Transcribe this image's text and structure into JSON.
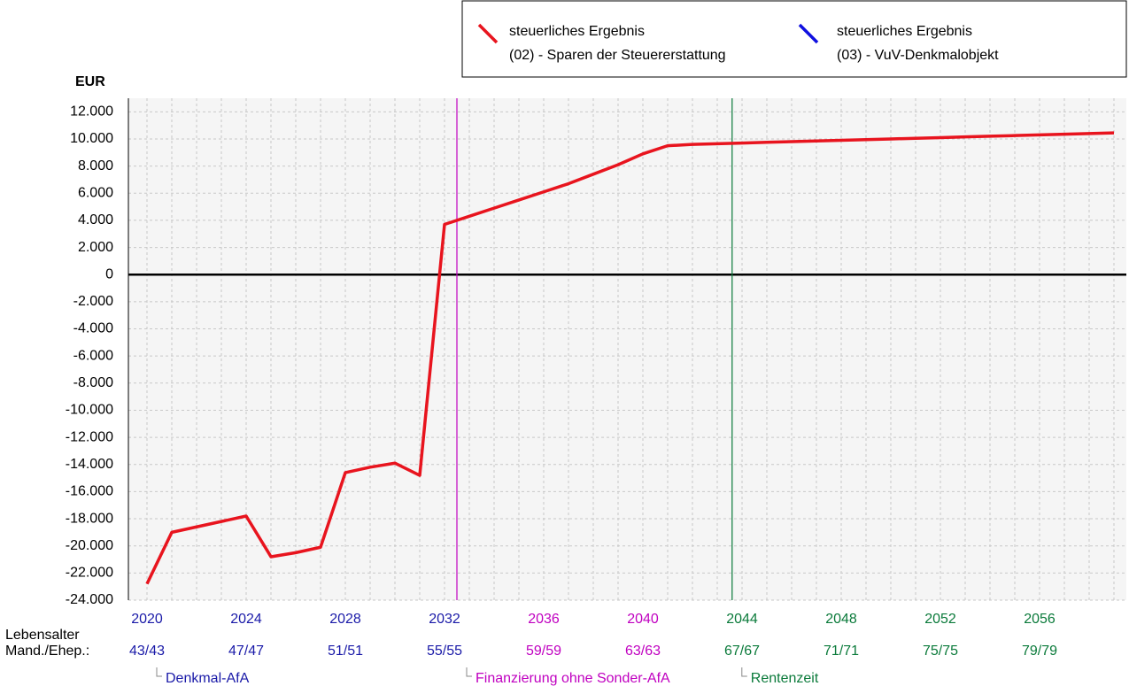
{
  "chart_data": {
    "type": "line",
    "y_label": "EUR",
    "series": [
      {
        "name": "steuerliches Ergebnis",
        "subtitle": "(02) - Sparen der Steuererstattung",
        "color": "#e8141e",
        "values": [
          -22800,
          -19000,
          -18600,
          -18200,
          -17800,
          -20800,
          -20500,
          -20100,
          -14600,
          -14200,
          -13900,
          -14800,
          3700,
          4300,
          4900,
          5500,
          6100,
          6700,
          7400,
          8100,
          8900,
          9500,
          9600,
          9650,
          9700,
          9750,
          9800,
          9850,
          9900,
          9950,
          10000,
          10050,
          10100,
          10150,
          10200,
          10250,
          10300,
          10350,
          10400,
          10450
        ]
      },
      {
        "name": "steuerliches Ergebnis",
        "subtitle": "(03) - VuV-Denkmalobjekt",
        "color": "#1010e0"
      }
    ],
    "x": [
      2020,
      2021,
      2022,
      2023,
      2024,
      2025,
      2026,
      2027,
      2028,
      2029,
      2030,
      2031,
      2032,
      2033,
      2034,
      2035,
      2036,
      2037,
      2038,
      2039,
      2040,
      2041,
      2042,
      2043,
      2044,
      2045,
      2046,
      2047,
      2048,
      2049,
      2050,
      2051,
      2052,
      2053,
      2054,
      2055,
      2056,
      2057,
      2058,
      2059
    ],
    "xlim": [
      2019.25,
      2059.5
    ],
    "xticks": [
      2020,
      2024,
      2028,
      2032,
      2036,
      2040,
      2044,
      2048,
      2052,
      2056
    ],
    "xtick_colors": [
      "#1a1aa8",
      "#1a1aa8",
      "#1a1aa8",
      "#1a1aa8",
      "#c000c0",
      "#c000c0",
      "#0a7a3a",
      "#0a7a3a",
      "#0a7a3a",
      "#0a7a3a"
    ],
    "age_row_labels": [
      "Lebensalter",
      "Mand./Ehep.:"
    ],
    "age_labels": [
      "43/43",
      "47/47",
      "51/51",
      "55/55",
      "59/59",
      "63/63",
      "67/67",
      "71/71",
      "75/75",
      "79/79"
    ],
    "ylim": [
      -24000,
      13000
    ],
    "yticks": [
      {
        "value": 12000,
        "label": "12.000"
      },
      {
        "value": 10000,
        "label": "10.000"
      },
      {
        "value": 8000,
        "label": "8.000"
      },
      {
        "value": 6000,
        "label": "6.000"
      },
      {
        "value": 4000,
        "label": "4.000"
      },
      {
        "value": 2000,
        "label": "2.000"
      },
      0,
      {
        "value": -2000,
        "label": "-2.000"
      },
      {
        "value": -4000,
        "label": "-4.000"
      },
      {
        "value": -6000,
        "label": "-6.000"
      },
      {
        "value": -8000,
        "label": "-8.000"
      },
      {
        "value": -10000,
        "label": "-10.000"
      },
      {
        "value": -12000,
        "label": "-12.000"
      },
      {
        "value": -14000,
        "label": "-14.000"
      },
      {
        "value": -16000,
        "label": "-16.000"
      },
      {
        "value": -18000,
        "label": "-18.000"
      },
      {
        "value": -20000,
        "label": "-20.000"
      },
      {
        "value": -22000,
        "label": "-22.000"
      },
      {
        "value": -24000,
        "label": "-24.000"
      }
    ],
    "grid": true,
    "phases": [
      {
        "label": "Denkmal-AfA",
        "x": 2020,
        "color": "#1a1aa8"
      },
      {
        "label": "Finanzierung ohne Sonder-AfA",
        "x": 2032.5,
        "color": "#c000c0",
        "line": true
      },
      {
        "label": "Rentenzeit",
        "x": 2043.6,
        "color": "#0a7a3a",
        "line": true
      }
    ]
  }
}
